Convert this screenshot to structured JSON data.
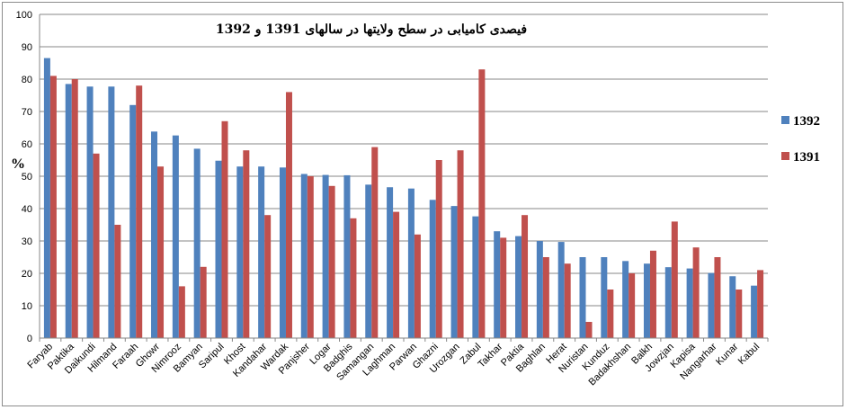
{
  "chart_data": {
    "type": "bar",
    "title": "فیصدی کامیابی در سطح ولایتها در سالهای 1391 و 1392",
    "ylabel": "%",
    "xlabel": "",
    "ylim": [
      0,
      100
    ],
    "yticks": [
      0,
      10,
      20,
      30,
      40,
      50,
      60,
      70,
      80,
      90,
      100
    ],
    "grid": true,
    "legend_position": "right",
    "categories": [
      "Faryab",
      "Paktika",
      "Daikundi",
      "Hilmand",
      "Faraah",
      "Ghowr",
      "Nimrooz",
      "Bamyan",
      "Saripul",
      "Khost",
      "Kandahar",
      "Wardak",
      "Panjsher",
      "Logar",
      "Badghis",
      "Samangan",
      "Laghman",
      "Parwan",
      "Ghazni",
      "Urozgan",
      "Zabul",
      "Takhar",
      "Paktia",
      "Baghlan",
      "Herat",
      "Nuristan",
      "Kunduz",
      "Badakhshan",
      "Balkh",
      "Jowzjan",
      "Kapisa",
      "Nangarhar",
      "Kunar",
      "Kabul"
    ],
    "series": [
      {
        "name": "1392",
        "color": "#4f81bd",
        "values": [
          86.5,
          78.5,
          77.7,
          77.7,
          72,
          63.8,
          62.6,
          58.5,
          54.8,
          53,
          53,
          52.7,
          50.7,
          50.4,
          50.3,
          47.4,
          46.6,
          46.2,
          42.7,
          40.8,
          37.6,
          33,
          31.5,
          30,
          29.7,
          25,
          25,
          23.8,
          23,
          21.9,
          21.5,
          20.1,
          19.1,
          16.2
        ]
      },
      {
        "name": "1391",
        "color": "#c0504d",
        "values": [
          81,
          80,
          57,
          35,
          78,
          53,
          16,
          22,
          67,
          58,
          38,
          76,
          50,
          47,
          37,
          59,
          39,
          32,
          55,
          58,
          83,
          31,
          38,
          25,
          23,
          5,
          15,
          20,
          27,
          36,
          28,
          25,
          15,
          21
        ]
      }
    ]
  }
}
